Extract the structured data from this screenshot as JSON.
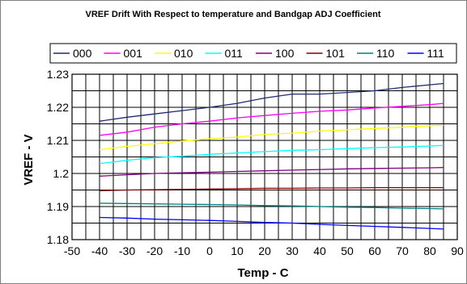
{
  "chart_data": {
    "type": "line",
    "title": "VREF Drift With Respect to temperature and Bandgap ADJ Coefficient",
    "xlabel": "Temp - C",
    "ylabel": "VREF - V",
    "xlim": [
      -50,
      90
    ],
    "ylim": [
      1.18,
      1.23
    ],
    "x_ticks": [
      "-50",
      "-40",
      "-30",
      "-20",
      "-10",
      "0",
      "10",
      "20",
      "30",
      "40",
      "50",
      "60",
      "70",
      "80",
      "90"
    ],
    "y_ticks": [
      "1.18",
      "1.19",
      "1.2",
      "1.21",
      "1.22",
      "1.23"
    ],
    "grid": true,
    "legend_position": "top",
    "x": [
      -40,
      -30,
      -20,
      -10,
      0,
      10,
      20,
      30,
      40,
      50,
      60,
      70,
      80,
      85
    ],
    "series": [
      {
        "name": "000",
        "color": "#1f2a6b",
        "values": [
          1.2158,
          1.217,
          1.218,
          1.219,
          1.22,
          1.2212,
          1.2228,
          1.224,
          1.224,
          1.2245,
          1.225,
          1.226,
          1.2268,
          1.2272
        ]
      },
      {
        "name": "001",
        "color": "#ff00ff",
        "values": [
          1.2115,
          1.2125,
          1.214,
          1.215,
          1.2158,
          1.2168,
          1.2175,
          1.2182,
          1.2188,
          1.2192,
          1.2198,
          1.2203,
          1.2208,
          1.2212
        ]
      },
      {
        "name": "010",
        "color": "#ffff00",
        "values": [
          1.2072,
          1.2082,
          1.209,
          1.2098,
          1.2105,
          1.211,
          1.2118,
          1.2122,
          1.2128,
          1.2132,
          1.2136,
          1.214,
          1.2144,
          1.2146
        ]
      },
      {
        "name": "011",
        "color": "#00ffff",
        "values": [
          1.203,
          1.204,
          1.2048,
          1.2052,
          1.2058,
          1.2062,
          1.2066,
          1.207,
          1.2072,
          1.2075,
          1.2078,
          1.208,
          1.2083,
          1.2085
        ]
      },
      {
        "name": "100",
        "color": "#800080",
        "values": [
          1.1992,
          1.1996,
          1.2,
          1.2002,
          1.2004,
          1.2006,
          1.2008,
          1.201,
          1.2012,
          1.2014,
          1.2015,
          1.2016,
          1.2017,
          1.2018
        ]
      },
      {
        "name": "101",
        "color": "#800000",
        "values": [
          1.1948,
          1.195,
          1.1951,
          1.1952,
          1.1953,
          1.1954,
          1.1955,
          1.1955,
          1.1956,
          1.1956,
          1.1957,
          1.1957,
          1.1957,
          1.1957
        ]
      },
      {
        "name": "110",
        "color": "#008080",
        "values": [
          1.191,
          1.1909,
          1.1908,
          1.1907,
          1.1906,
          1.1905,
          1.1903,
          1.1902,
          1.19,
          1.1898,
          1.1897,
          1.1895,
          1.1894,
          1.1893
        ]
      },
      {
        "name": "111",
        "color": "#0000ff",
        "values": [
          1.1867,
          1.1865,
          1.1862,
          1.186,
          1.1858,
          1.1855,
          1.1852,
          1.185,
          1.1846,
          1.1843,
          1.184,
          1.1837,
          1.1834,
          1.1832
        ]
      }
    ]
  }
}
